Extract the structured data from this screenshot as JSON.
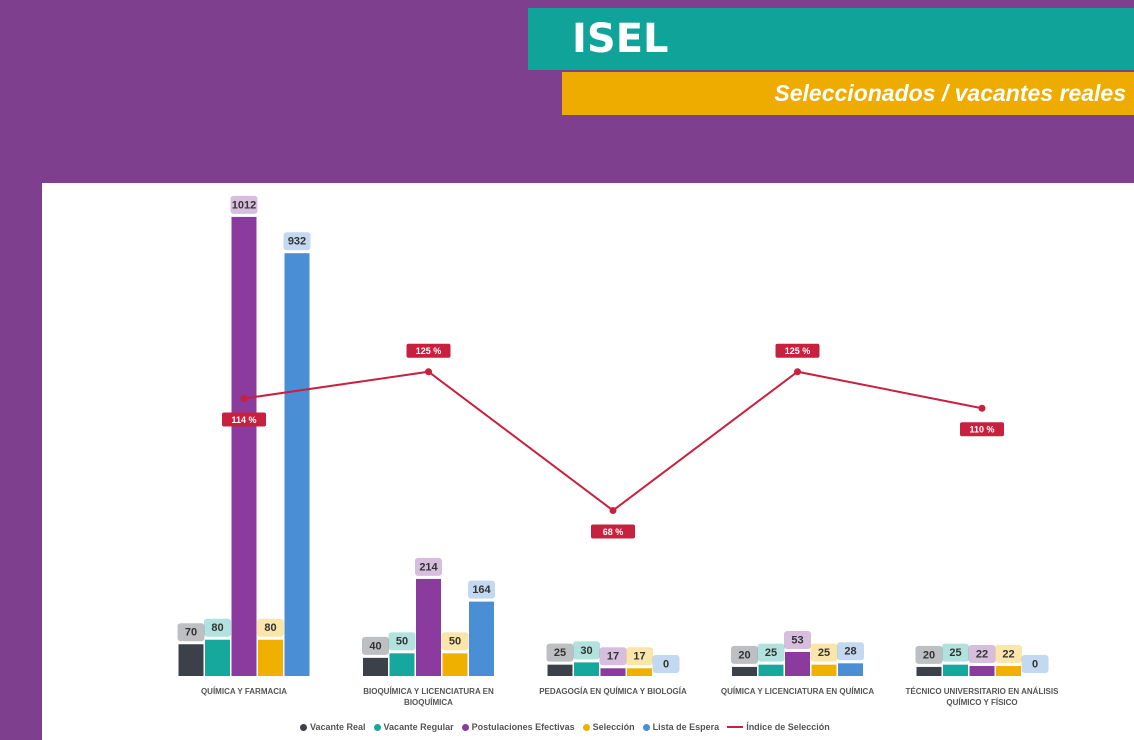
{
  "chart_data": {
    "type": "bar",
    "title": "ISEL",
    "subtitle": "Seleccionados / vacantes reales",
    "categories": [
      "QUÍMICA Y FARMACIA",
      "BIOQUÍMICA Y LICENCIATURA EN BIOQUÍMICA",
      "PEDAGOGÍA EN QUÍMICA Y BIOLOGÍA",
      "QUÍMICA Y LICENCIATURA EN QUÍMICA",
      "TÉCNICO UNIVERSITARIO EN ANÁLISIS QUÍMICO Y FÍSICO"
    ],
    "series": [
      {
        "name": "Vacante Real",
        "color": "#3b4049",
        "values": [
          70,
          40,
          25,
          20,
          20
        ]
      },
      {
        "name": "Vacante Regular",
        "color": "#16a89c",
        "values": [
          80,
          50,
          30,
          25,
          25
        ]
      },
      {
        "name": "Postulaciones Efectivas",
        "color": "#8a3b9d",
        "values": [
          1012,
          214,
          17,
          53,
          22
        ]
      },
      {
        "name": "Selección",
        "color": "#f0b000",
        "values": [
          80,
          50,
          17,
          25,
          22
        ]
      },
      {
        "name": "Lista de Espera",
        "color": "#4a8ed6",
        "values": [
          932,
          164,
          0,
          28,
          0
        ]
      },
      {
        "name": "Índice de Selección",
        "color": "#c8203f",
        "type": "line",
        "axis": "y2",
        "values": [
          114,
          125,
          68,
          125,
          110
        ],
        "value_labels": [
          "114 %",
          "125 %",
          "68 %",
          "125 %",
          "110 %"
        ]
      }
    ],
    "ylim": [
      0,
      1100
    ],
    "y2lim": [
      0,
      205
    ],
    "legend": "bottom"
  }
}
